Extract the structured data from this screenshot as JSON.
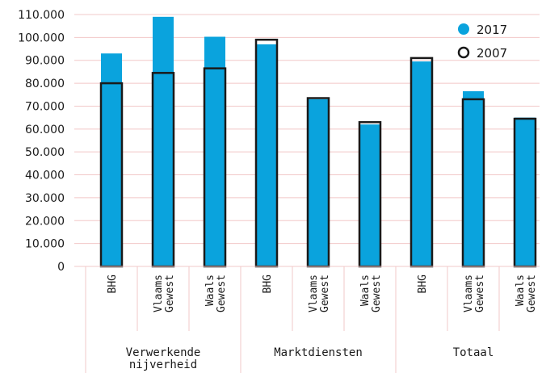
{
  "chart_data": {
    "type": "bar",
    "title": "",
    "xlabel": "",
    "ylabel": "",
    "ylim": [
      0,
      110000
    ],
    "y_ticks": [
      "0",
      "10.000",
      "20.000",
      "30.000",
      "40.000",
      "50.000",
      "60.000",
      "70.000",
      "80.000",
      "90.000",
      "100.000",
      "110.000"
    ],
    "grid": "y",
    "legend_position": "top-right",
    "groups": [
      {
        "label": "Verwerkende nijverheid",
        "categories": [
          "BHG",
          "Vlaams Gewest",
          "Waals Gewest"
        ]
      },
      {
        "label": "Marktdiensten",
        "categories": [
          "BHG",
          "Vlaams Gewest",
          "Waals Gewest"
        ]
      },
      {
        "label": "Totaal",
        "categories": [
          "BHG",
          "Vlaams Gewest",
          "Waals Gewest"
        ]
      }
    ],
    "categories": [
      "BHG",
      "Vlaams Gewest",
      "Waals Gewest",
      "BHG",
      "Vlaams Gewest",
      "Waals Gewest",
      "BHG",
      "Vlaams Gewest",
      "Waals Gewest"
    ],
    "series": [
      {
        "name": "2017",
        "style": "filled",
        "color": "#0aa3dd",
        "values": [
          93000,
          109000,
          100300,
          97000,
          73000,
          62000,
          89500,
          76500,
          65000
        ]
      },
      {
        "name": "2007",
        "style": "outline",
        "color": "#1a1a1a",
        "values": [
          80000,
          84500,
          86500,
          99000,
          73500,
          63000,
          91000,
          73000,
          64500
        ]
      }
    ]
  }
}
